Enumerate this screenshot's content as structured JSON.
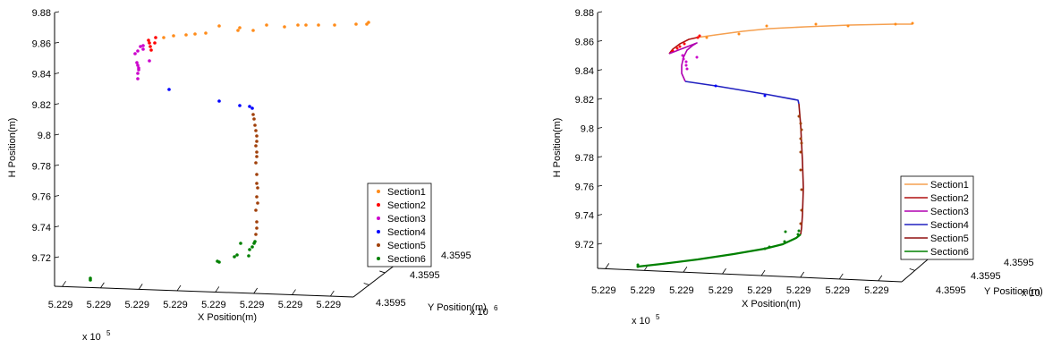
{
  "chart_data": [
    {
      "type": "scatter",
      "projection": "3d",
      "xlabel": "X Position(m)",
      "ylabel": "Y Position(m)",
      "zlabel": "H Position(m)",
      "x_ticks": [
        "5.229",
        "5.229",
        "5.229",
        "5.229",
        "5.229",
        "5.229",
        "5.229",
        "5.229"
      ],
      "y_ticks": [
        "4.3595",
        "4.3595",
        "4.3595"
      ],
      "z_ticks": [
        "9.72",
        "9.74",
        "9.76",
        "9.78",
        "9.8",
        "9.82",
        "9.84",
        "9.86",
        "9.88"
      ],
      "x_multiplier_base": "x 10",
      "x_multiplier_exp": "5",
      "y_multiplier_base": "x 10",
      "y_multiplier_exp": "6",
      "zlim": [
        9.71,
        9.88
      ],
      "legend_position": "lower-right",
      "series": [
        {
          "name": "Section1",
          "color": "#ff8c1a",
          "h": [
            9.863,
            9.864,
            9.865,
            9.866,
            9.867,
            9.868,
            9.869,
            9.869,
            9.87,
            9.87,
            9.871,
            9.871,
            9.871,
            9.872,
            9.872
          ]
        },
        {
          "name": "Section2",
          "color": "#ff0000",
          "h": [
            9.856,
            9.858,
            9.86,
            9.862,
            9.863
          ]
        },
        {
          "name": "Section3",
          "color": "#cc00cc",
          "h": [
            9.834,
            9.838,
            9.842,
            9.846,
            9.849,
            9.852,
            9.855
          ]
        },
        {
          "name": "Section4",
          "color": "#0000ff",
          "h": [
            9.818,
            9.819,
            9.82,
            9.822,
            9.83
          ]
        },
        {
          "name": "Section5",
          "color": "#a0400a",
          "h": [
            9.732,
            9.74,
            9.75,
            9.76,
            9.77,
            9.78,
            9.79,
            9.8,
            9.808,
            9.815
          ]
        },
        {
          "name": "Section6",
          "color": "#008000",
          "h": [
            9.706,
            9.708,
            9.716,
            9.719,
            9.722,
            9.726,
            9.73
          ]
        }
      ]
    },
    {
      "type": "line",
      "projection": "3d",
      "xlabel": "X Position(m)",
      "ylabel": "Y Position(m)",
      "zlabel": "H Position(m)",
      "x_ticks": [
        "5.229",
        "5.229",
        "5.229",
        "5.229",
        "5.229",
        "5.229",
        "5.229",
        "5.229"
      ],
      "y_ticks": [
        "4.3595",
        "4.3595",
        "4.3595"
      ],
      "z_ticks": [
        "9.72",
        "9.74",
        "9.76",
        "9.78",
        "9.8",
        "9.82",
        "9.84",
        "9.86",
        "9.88"
      ],
      "x_multiplier_base": "x 10",
      "x_multiplier_exp": "5",
      "y_multiplier_base": "x 10",
      "y_multiplier_exp": "6",
      "zlim": [
        9.7,
        9.88
      ],
      "legend_position": "lower-right",
      "series": [
        {
          "name": "Section1",
          "color": "#f5a050",
          "h": [
            9.862,
            9.864,
            9.866,
            9.868,
            9.869,
            9.87,
            9.871,
            9.872
          ]
        },
        {
          "name": "Section2",
          "color": "#b01010",
          "h": [
            9.855,
            9.858,
            9.861,
            9.862
          ]
        },
        {
          "name": "Section3",
          "color": "#b000b0",
          "h": [
            9.834,
            9.84,
            9.848,
            9.855
          ]
        },
        {
          "name": "Section4",
          "color": "#2020c0",
          "h": [
            9.818,
            9.822,
            9.828,
            9.834
          ]
        },
        {
          "name": "Section5",
          "color": "#901010",
          "h": [
            9.732,
            9.76,
            9.8,
            9.818
          ]
        },
        {
          "name": "Section6",
          "color": "#008000",
          "h": [
            9.705,
            9.712,
            9.718,
            9.724,
            9.732
          ]
        }
      ]
    }
  ]
}
